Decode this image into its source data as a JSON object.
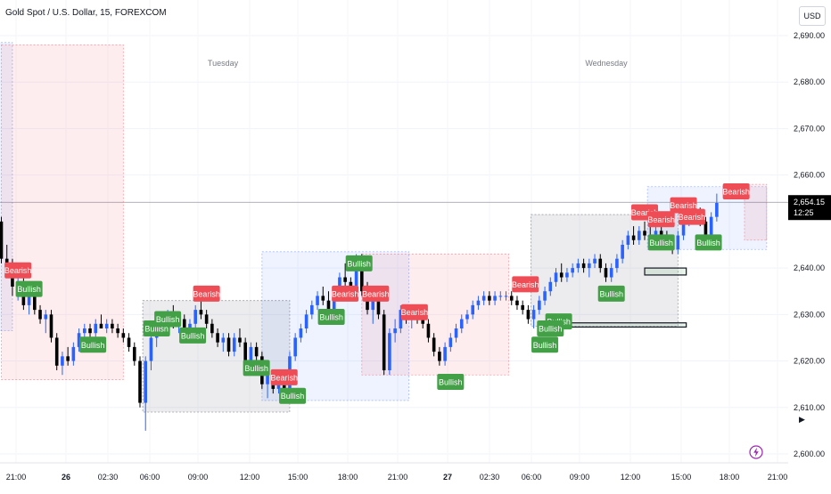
{
  "chart_data": {
    "type": "candlestick",
    "title": "Gold Spot / U.S. Dollar, 15, FOREXCOM",
    "currency": "USD",
    "ylim": [
      2598,
      2700
    ],
    "y_ticks": [
      {
        "v": 2690,
        "label": "2,690.00"
      },
      {
        "v": 2680,
        "label": "2,680.00"
      },
      {
        "v": 2670,
        "label": "2,670.00"
      },
      {
        "v": 2660,
        "label": "2,660.00"
      },
      {
        "v": 2640,
        "label": "2,640.00"
      },
      {
        "v": 2630,
        "label": "2,630.00"
      },
      {
        "v": 2620,
        "label": "2,620.00"
      },
      {
        "v": 2610,
        "label": "2,610.00"
      },
      {
        "v": 2600,
        "label": "2,600.00"
      }
    ],
    "x_ticks": [
      {
        "label": "21:00",
        "bold": false
      },
      {
        "label": "26",
        "bold": true
      },
      {
        "label": "02:30",
        "bold": false
      },
      {
        "label": "06:00",
        "bold": false
      },
      {
        "label": "09:00",
        "bold": false
      },
      {
        "label": "12:00",
        "bold": false
      },
      {
        "label": "15:00",
        "bold": false
      },
      {
        "label": "18:00",
        "bold": false
      },
      {
        "label": "21:00",
        "bold": false
      },
      {
        "label": "27",
        "bold": true
      },
      {
        "label": "02:30",
        "bold": false
      },
      {
        "label": "06:00",
        "bold": false
      },
      {
        "label": "09:00",
        "bold": false
      },
      {
        "label": "12:00",
        "bold": false
      },
      {
        "label": "15:00",
        "bold": false
      },
      {
        "label": "18:00",
        "bold": false
      },
      {
        "label": "21:00",
        "bold": false
      }
    ],
    "day_labels": [
      "Tuesday",
      "Wednesday"
    ],
    "current_price": {
      "value": 2654.15,
      "label": "2,654.15",
      "countdown": "12:25"
    },
    "colors": {
      "bull": "#2962ff",
      "bear": "#000000",
      "bullish_label": "#43a047",
      "bearish_label": "#ef4d56",
      "zone_red": "#f7525f",
      "zone_blue": "#2962ff",
      "zone_gray": "#787b86"
    },
    "zones": [
      {
        "kind": "blue",
        "t0": -2.0,
        "t1": 2.0,
        "p0": 2626.5,
        "p1": 2688.5
      },
      {
        "kind": "red",
        "t0": 0.0,
        "t1": 22.0,
        "p0": 2616.0,
        "p1": 2688.0
      },
      {
        "kind": "gray",
        "t0": 25.5,
        "t1": 52.0,
        "p0": 2609.0,
        "p1": 2633.0
      },
      {
        "kind": "blue",
        "t0": 47.0,
        "t1": 73.5,
        "p0": 2611.5,
        "p1": 2643.5
      },
      {
        "kind": "red",
        "t0": 65.0,
        "t1": 91.5,
        "p0": 2617.0,
        "p1": 2643.0
      },
      {
        "kind": "gray",
        "t0": 95.5,
        "t1": 122.0,
        "p0": 2627.5,
        "p1": 2651.5
      },
      {
        "kind": "blue",
        "t0": 116.5,
        "t1": 138.0,
        "p0": 2644.0,
        "p1": 2657.5
      },
      {
        "kind": "red",
        "t0": 134.0,
        "t1": 138.0,
        "p0": 2646.0,
        "p1": 2658.0
      }
    ],
    "small_boxes": [
      {
        "t0": 116.0,
        "t1": 123.5,
        "p0": 2638.5,
        "p1": 2640.0
      },
      {
        "t0": 98.0,
        "t1": 123.5,
        "p0": 2627.3,
        "p1": 2628.2
      }
    ],
    "signals": [
      {
        "text": "Bearish",
        "type": "bear",
        "t": 3.0,
        "p": 2639.5
      },
      {
        "text": "Bullish",
        "type": "bull",
        "t": 5.0,
        "p": 2635.5
      },
      {
        "text": "Bullish",
        "type": "bull",
        "t": 16.5,
        "p": 2623.5
      },
      {
        "text": "Bearish",
        "type": "bear",
        "t": 37.0,
        "p": 2634.5
      },
      {
        "text": "Bullish",
        "type": "bull",
        "t": 28.0,
        "p": 2627.0
      },
      {
        "text": "Bullish",
        "type": "bull",
        "t": 30.0,
        "p": 2629.0
      },
      {
        "text": "Bullish",
        "type": "bull",
        "t": 34.5,
        "p": 2625.5
      },
      {
        "text": "Bullish",
        "type": "bull",
        "t": 46.0,
        "p": 2618.5
      },
      {
        "text": "Bearish",
        "type": "bear",
        "t": 51.0,
        "p": 2616.5
      },
      {
        "text": "Bullish",
        "type": "bull",
        "t": 52.5,
        "p": 2612.5
      },
      {
        "text": "Bullish",
        "type": "bull",
        "t": 64.5,
        "p": 2641.0
      },
      {
        "text": "Bearish",
        "type": "bear",
        "t": 62.0,
        "p": 2634.5
      },
      {
        "text": "Bearish",
        "type": "bear",
        "t": 67.5,
        "p": 2634.5
      },
      {
        "text": "Bullish",
        "type": "bull",
        "t": 59.5,
        "p": 2629.5
      },
      {
        "text": "Bearish",
        "type": "bear",
        "t": 74.5,
        "p": 2630.5
      },
      {
        "text": "Bullish",
        "type": "bull",
        "t": 81.0,
        "p": 2615.5
      },
      {
        "text": "Bearish",
        "type": "bear",
        "t": 94.5,
        "p": 2636.5
      },
      {
        "text": "Bullish",
        "type": "bull",
        "t": 100.5,
        "p": 2628.5
      },
      {
        "text": "Bullish",
        "type": "bull",
        "t": 99.0,
        "p": 2627.0
      },
      {
        "text": "Bullish",
        "type": "bull",
        "t": 98.0,
        "p": 2623.5
      },
      {
        "text": "Bullish",
        "type": "bull",
        "t": 110.0,
        "p": 2634.5
      },
      {
        "text": "Bearish",
        "type": "bear",
        "t": 116.0,
        "p": 2652.0
      },
      {
        "text": "Bearish",
        "type": "bear",
        "t": 119.0,
        "p": 2650.5
      },
      {
        "text": "Bullish",
        "type": "bull",
        "t": 119.0,
        "p": 2645.5
      },
      {
        "text": "Bearish",
        "type": "bear",
        "t": 123.0,
        "p": 2653.5
      },
      {
        "text": "Bearish",
        "type": "bear",
        "t": 124.5,
        "p": 2651.0
      },
      {
        "text": "Bullish",
        "type": "bull",
        "t": 127.5,
        "p": 2645.5
      },
      {
        "text": "Bearish",
        "type": "bear",
        "t": 132.5,
        "p": 2656.5
      }
    ],
    "candles": [
      [
        2650,
        2651,
        2641,
        2642
      ],
      [
        2642,
        2645,
        2638,
        2641
      ],
      [
        2641,
        2642,
        2634,
        2636
      ],
      [
        2636,
        2639,
        2633,
        2637
      ],
      [
        2637,
        2638,
        2631,
        2632
      ],
      [
        2632,
        2636,
        2630,
        2635
      ],
      [
        2635,
        2636,
        2630,
        2631
      ],
      [
        2631,
        2632,
        2628,
        2629
      ],
      [
        2629,
        2631,
        2626,
        2630
      ],
      [
        2630,
        2631,
        2624,
        2625
      ],
      [
        2625,
        2626,
        2618,
        2619
      ],
      [
        2619,
        2622,
        2617,
        2621
      ],
      [
        2621,
        2623,
        2619,
        2620
      ],
      [
        2620,
        2624,
        2619,
        2623
      ],
      [
        2623,
        2627,
        2622,
        2626
      ],
      [
        2626,
        2628,
        2625,
        2627
      ],
      [
        2627,
        2628,
        2625,
        2626
      ],
      [
        2626,
        2629,
        2625,
        2628
      ],
      [
        2628,
        2630,
        2627,
        2627
      ],
      [
        2627,
        2629,
        2626,
        2628
      ],
      [
        2628,
        2629,
        2626,
        2627
      ],
      [
        2627,
        2628,
        2625,
        2626
      ],
      [
        2626,
        2627,
        2624,
        2625
      ],
      [
        2625,
        2626,
        2622,
        2623
      ],
      [
        2623,
        2624,
        2619,
        2620
      ],
      [
        2620,
        2621,
        2610,
        2611
      ],
      [
        2611,
        2621,
        2605,
        2620
      ],
      [
        2620,
        2626,
        2618,
        2625
      ],
      [
        2625,
        2629,
        2623,
        2628
      ],
      [
        2628,
        2630,
        2626,
        2629
      ],
      [
        2629,
        2631,
        2627,
        2630
      ],
      [
        2630,
        2632,
        2627,
        2628
      ],
      [
        2628,
        2630,
        2626,
        2629
      ],
      [
        2629,
        2630,
        2626,
        2627
      ],
      [
        2627,
        2629,
        2625,
        2628
      ],
      [
        2628,
        2632,
        2627,
        2631
      ],
      [
        2631,
        2633,
        2629,
        2630
      ],
      [
        2630,
        2631,
        2627,
        2628
      ],
      [
        2628,
        2629,
        2625,
        2626
      ],
      [
        2626,
        2627,
        2623,
        2624
      ],
      [
        2624,
        2626,
        2622,
        2625
      ],
      [
        2625,
        2626,
        2621,
        2622
      ],
      [
        2622,
        2626,
        2621,
        2625
      ],
      [
        2625,
        2627,
        2623,
        2624
      ],
      [
        2624,
        2625,
        2619,
        2620
      ],
      [
        2620,
        2624,
        2619,
        2623
      ],
      [
        2623,
        2624,
        2620,
        2621
      ],
      [
        2621,
        2622,
        2614,
        2615
      ],
      [
        2615,
        2618,
        2612,
        2617
      ],
      [
        2617,
        2618,
        2613,
        2614
      ],
      [
        2614,
        2617,
        2613,
        2616
      ],
      [
        2616,
        2617,
        2613,
        2614
      ],
      [
        2614,
        2622,
        2613,
        2621
      ],
      [
        2621,
        2626,
        2620,
        2625
      ],
      [
        2625,
        2628,
        2624,
        2627
      ],
      [
        2627,
        2631,
        2626,
        2630
      ],
      [
        2630,
        2633,
        2629,
        2632
      ],
      [
        2632,
        2635,
        2631,
        2634
      ],
      [
        2634,
        2636,
        2632,
        2633
      ],
      [
        2633,
        2635,
        2630,
        2631
      ],
      [
        2631,
        2635,
        2630,
        2634
      ],
      [
        2634,
        2639,
        2633,
        2638
      ],
      [
        2638,
        2641,
        2636,
        2637
      ],
      [
        2637,
        2638,
        2633,
        2634
      ],
      [
        2634,
        2643,
        2633,
        2642
      ],
      [
        2642,
        2643,
        2634,
        2635
      ],
      [
        2635,
        2637,
        2630,
        2631
      ],
      [
        2631,
        2634,
        2628,
        2633
      ],
      [
        2633,
        2634,
        2629,
        2630
      ],
      [
        2630,
        2631,
        2617,
        2618
      ],
      [
        2618,
        2627,
        2617,
        2626
      ],
      [
        2626,
        2629,
        2624,
        2627
      ],
      [
        2627,
        2632,
        2626,
        2631
      ],
      [
        2631,
        2632,
        2628,
        2629
      ],
      [
        2629,
        2631,
        2627,
        2630
      ],
      [
        2630,
        2631,
        2628,
        2629
      ],
      [
        2629,
        2630,
        2627,
        2628
      ],
      [
        2628,
        2629,
        2624,
        2625
      ],
      [
        2625,
        2626,
        2621,
        2622
      ],
      [
        2622,
        2623,
        2619,
        2620
      ],
      [
        2620,
        2624,
        2619,
        2623
      ],
      [
        2623,
        2626,
        2622,
        2625
      ],
      [
        2625,
        2628,
        2624,
        2627
      ],
      [
        2627,
        2630,
        2626,
        2629
      ],
      [
        2629,
        2631,
        2628,
        2630
      ],
      [
        2630,
        2633,
        2629,
        2632
      ],
      [
        2632,
        2634,
        2631,
        2633
      ],
      [
        2633,
        2635,
        2632,
        2634
      ],
      [
        2634,
        2635,
        2632,
        2633
      ],
      [
        2633,
        2635,
        2632,
        2634
      ],
      [
        2634,
        2635,
        2633,
        2634
      ],
      [
        2634,
        2635,
        2633,
        2634
      ],
      [
        2634,
        2635,
        2632,
        2633
      ],
      [
        2633,
        2634,
        2631,
        2632
      ],
      [
        2632,
        2633,
        2630,
        2631
      ],
      [
        2631,
        2632,
        2628,
        2629
      ],
      [
        2629,
        2632,
        2627,
        2631
      ],
      [
        2631,
        2634,
        2630,
        2633
      ],
      [
        2633,
        2636,
        2632,
        2635
      ],
      [
        2635,
        2638,
        2634,
        2637
      ],
      [
        2637,
        2640,
        2636,
        2639
      ],
      [
        2639,
        2641,
        2637,
        2638
      ],
      [
        2638,
        2640,
        2637,
        2639
      ],
      [
        2639,
        2641,
        2638,
        2640
      ],
      [
        2640,
        2642,
        2639,
        2641
      ],
      [
        2641,
        2642,
        2639,
        2640
      ],
      [
        2640,
        2642,
        2638,
        2641
      ],
      [
        2641,
        2643,
        2640,
        2642
      ],
      [
        2642,
        2643,
        2639,
        2640
      ],
      [
        2640,
        2641,
        2637,
        2638
      ],
      [
        2638,
        2641,
        2637,
        2640
      ],
      [
        2640,
        2643,
        2639,
        2642
      ],
      [
        2642,
        2646,
        2641,
        2645
      ],
      [
        2645,
        2648,
        2644,
        2647
      ],
      [
        2647,
        2649,
        2645,
        2646
      ],
      [
        2646,
        2649,
        2645,
        2648
      ],
      [
        2648,
        2650,
        2646,
        2647
      ],
      [
        2647,
        2649,
        2645,
        2646
      ],
      [
        2646,
        2649,
        2645,
        2648
      ],
      [
        2648,
        2649,
        2646,
        2647
      ],
      [
        2647,
        2648,
        2644,
        2645
      ],
      [
        2645,
        2646,
        2643,
        2644
      ],
      [
        2644,
        2648,
        2643,
        2647
      ],
      [
        2647,
        2651,
        2646,
        2650
      ],
      [
        2650,
        2653,
        2649,
        2652
      ],
      [
        2652,
        2654,
        2650,
        2651
      ],
      [
        2651,
        2653,
        2649,
        2650
      ],
      [
        2650,
        2651,
        2646,
        2647
      ],
      [
        2647,
        2652,
        2646,
        2651
      ],
      [
        2651,
        2656,
        2650,
        2654
      ]
    ]
  }
}
